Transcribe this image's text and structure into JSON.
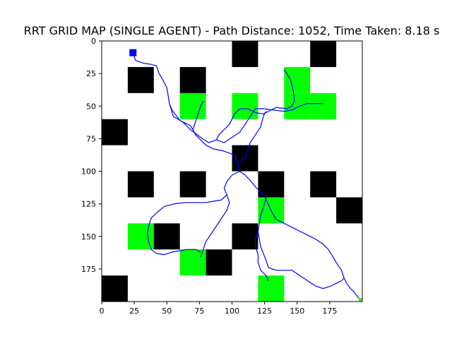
{
  "chart_data": {
    "type": "heatmap",
    "title": "RRT GRID MAP (SINGLE AGENT) - Path Distance: 1052, Time Taken: 8.18 s",
    "xlabel": "",
    "ylabel": "",
    "xlim": [
      0,
      200
    ],
    "ylim": [
      200,
      0
    ],
    "grid": false,
    "cell_size": 20,
    "xticks": [
      0,
      25,
      50,
      75,
      100,
      125,
      150,
      175
    ],
    "yticks": [
      0,
      25,
      50,
      75,
      100,
      125,
      150,
      175
    ],
    "colors": {
      "obstacle": "#000000",
      "goal_region": "#00ff00",
      "path": "#0000ff",
      "start": "#0000ff",
      "free": "#ffffff"
    },
    "obstacle_cells": [
      [
        100,
        0
      ],
      [
        160,
        0
      ],
      [
        20,
        20
      ],
      [
        60,
        20
      ],
      [
        0,
        60
      ],
      [
        100,
        80
      ],
      [
        20,
        100
      ],
      [
        60,
        100
      ],
      [
        120,
        100
      ],
      [
        160,
        100
      ],
      [
        180,
        120
      ],
      [
        40,
        140
      ],
      [
        100,
        140
      ],
      [
        80,
        160
      ],
      [
        0,
        180
      ]
    ],
    "green_cells": [
      [
        140,
        20
      ],
      [
        60,
        40
      ],
      [
        100,
        40
      ],
      [
        140,
        40
      ],
      [
        160,
        40
      ],
      [
        120,
        120
      ],
      [
        20,
        140
      ],
      [
        60,
        160
      ],
      [
        120,
        180
      ]
    ],
    "start": [
      24,
      9
    ],
    "goal": [
      199,
      199
    ],
    "paths": [
      [
        [
          24,
          9
        ],
        [
          26,
          15
        ],
        [
          32,
          17
        ],
        [
          38,
          18
        ],
        [
          42,
          19
        ],
        [
          44,
          25
        ],
        [
          47,
          30
        ],
        [
          50,
          36
        ],
        [
          51,
          42
        ],
        [
          52,
          48
        ],
        [
          54,
          53
        ],
        [
          57,
          57
        ],
        [
          60,
          61
        ],
        [
          64,
          63
        ],
        [
          68,
          65
        ],
        [
          70,
          68
        ],
        [
          72,
          72
        ],
        [
          76,
          76
        ],
        [
          80,
          80
        ],
        [
          86,
          83
        ],
        [
          92,
          84
        ],
        [
          98,
          86
        ],
        [
          102,
          88
        ],
        [
          104,
          93
        ],
        [
          106,
          100
        ],
        [
          110,
          103
        ],
        [
          114,
          107
        ],
        [
          118,
          112
        ],
        [
          122,
          116
        ],
        [
          126,
          121
        ],
        [
          128,
          126
        ],
        [
          131,
          132
        ],
        [
          134,
          137
        ],
        [
          140,
          140
        ],
        [
          146,
          143
        ],
        [
          152,
          146
        ],
        [
          158,
          149
        ],
        [
          164,
          152
        ],
        [
          170,
          156
        ],
        [
          174,
          160
        ],
        [
          177,
          165
        ],
        [
          180,
          170
        ],
        [
          184,
          176
        ],
        [
          186,
          182
        ],
        [
          188,
          186
        ],
        [
          191,
          190
        ],
        [
          194,
          193
        ],
        [
          197,
          197
        ],
        [
          199,
          199
        ]
      ],
      [
        [
          52,
          48
        ],
        [
          55,
          58
        ],
        [
          62,
          62
        ],
        [
          68,
          68
        ],
        [
          76,
          74
        ],
        [
          82,
          78
        ],
        [
          88,
          76
        ],
        [
          94,
          78
        ],
        [
          100,
          74
        ],
        [
          106,
          70
        ],
        [
          110,
          64
        ],
        [
          114,
          58
        ],
        [
          118,
          52
        ],
        [
          124,
          52
        ],
        [
          132,
          53
        ],
        [
          140,
          54
        ],
        [
          146,
          53
        ],
        [
          152,
          50
        ],
        [
          158,
          48
        ],
        [
          166,
          48
        ],
        [
          170,
          48
        ]
      ],
      [
        [
          88,
          76
        ],
        [
          90,
          72
        ],
        [
          94,
          68
        ],
        [
          98,
          64
        ],
        [
          102,
          56
        ],
        [
          106,
          52
        ],
        [
          112,
          52
        ],
        [
          118,
          55
        ],
        [
          124,
          56
        ],
        [
          128,
          54
        ],
        [
          134,
          51
        ],
        [
          142,
          52
        ],
        [
          146,
          50
        ],
        [
          148,
          46
        ],
        [
          147,
          38
        ],
        [
          145,
          30
        ],
        [
          142,
          25
        ],
        [
          140,
          22
        ]
      ],
      [
        [
          106,
          100
        ],
        [
          100,
          103
        ],
        [
          96,
          108
        ],
        [
          94,
          113
        ],
        [
          96,
          118
        ],
        [
          98,
          124
        ],
        [
          96,
          130
        ],
        [
          92,
          136
        ],
        [
          88,
          142
        ],
        [
          84,
          148
        ],
        [
          80,
          154
        ],
        [
          78,
          160
        ],
        [
          76,
          166
        ]
      ],
      [
        [
          96,
          118
        ],
        [
          92,
          122
        ],
        [
          86,
          123
        ],
        [
          80,
          124
        ],
        [
          72,
          124
        ],
        [
          64,
          124
        ],
        [
          56,
          125
        ],
        [
          48,
          127
        ],
        [
          42,
          132
        ],
        [
          38,
          136
        ],
        [
          36,
          142
        ],
        [
          35,
          148
        ],
        [
          36,
          154
        ],
        [
          38,
          160
        ],
        [
          42,
          163
        ],
        [
          48,
          164
        ],
        [
          54,
          162
        ],
        [
          60,
          161
        ],
        [
          66,
          160
        ],
        [
          72,
          160
        ],
        [
          76,
          162
        ]
      ],
      [
        [
          126,
          121
        ],
        [
          124,
          128
        ],
        [
          122,
          134
        ],
        [
          121,
          140
        ],
        [
          120,
          146
        ],
        [
          121,
          152
        ],
        [
          122,
          158
        ],
        [
          124,
          163
        ],
        [
          126,
          168
        ],
        [
          128,
          174
        ],
        [
          134,
          176
        ],
        [
          140,
          176
        ],
        [
          146,
          176
        ],
        [
          152,
          180
        ],
        [
          158,
          184
        ],
        [
          164,
          188
        ],
        [
          170,
          190
        ],
        [
          176,
          188
        ],
        [
          180,
          186
        ],
        [
          184,
          184
        ],
        [
          186,
          182
        ]
      ],
      [
        [
          120,
          146
        ],
        [
          118,
          152
        ],
        [
          118,
          158
        ],
        [
          120,
          164
        ],
        [
          120,
          170
        ],
        [
          122,
          176
        ],
        [
          126,
          180
        ],
        [
          128,
          184
        ]
      ],
      [
        [
          70,
          68
        ],
        [
          72,
          62
        ],
        [
          74,
          56
        ],
        [
          76,
          50
        ],
        [
          78,
          46
        ]
      ],
      [
        [
          104,
          93
        ],
        [
          110,
          90
        ],
        [
          112,
          84
        ],
        [
          114,
          78
        ],
        [
          118,
          72
        ],
        [
          122,
          66
        ],
        [
          124,
          58
        ],
        [
          126,
          54
        ]
      ]
    ]
  },
  "figure": {
    "title": "RRT GRID MAP (SINGLE AGENT) - Path Distance: 1052, Time Taken: 8.18 s"
  }
}
